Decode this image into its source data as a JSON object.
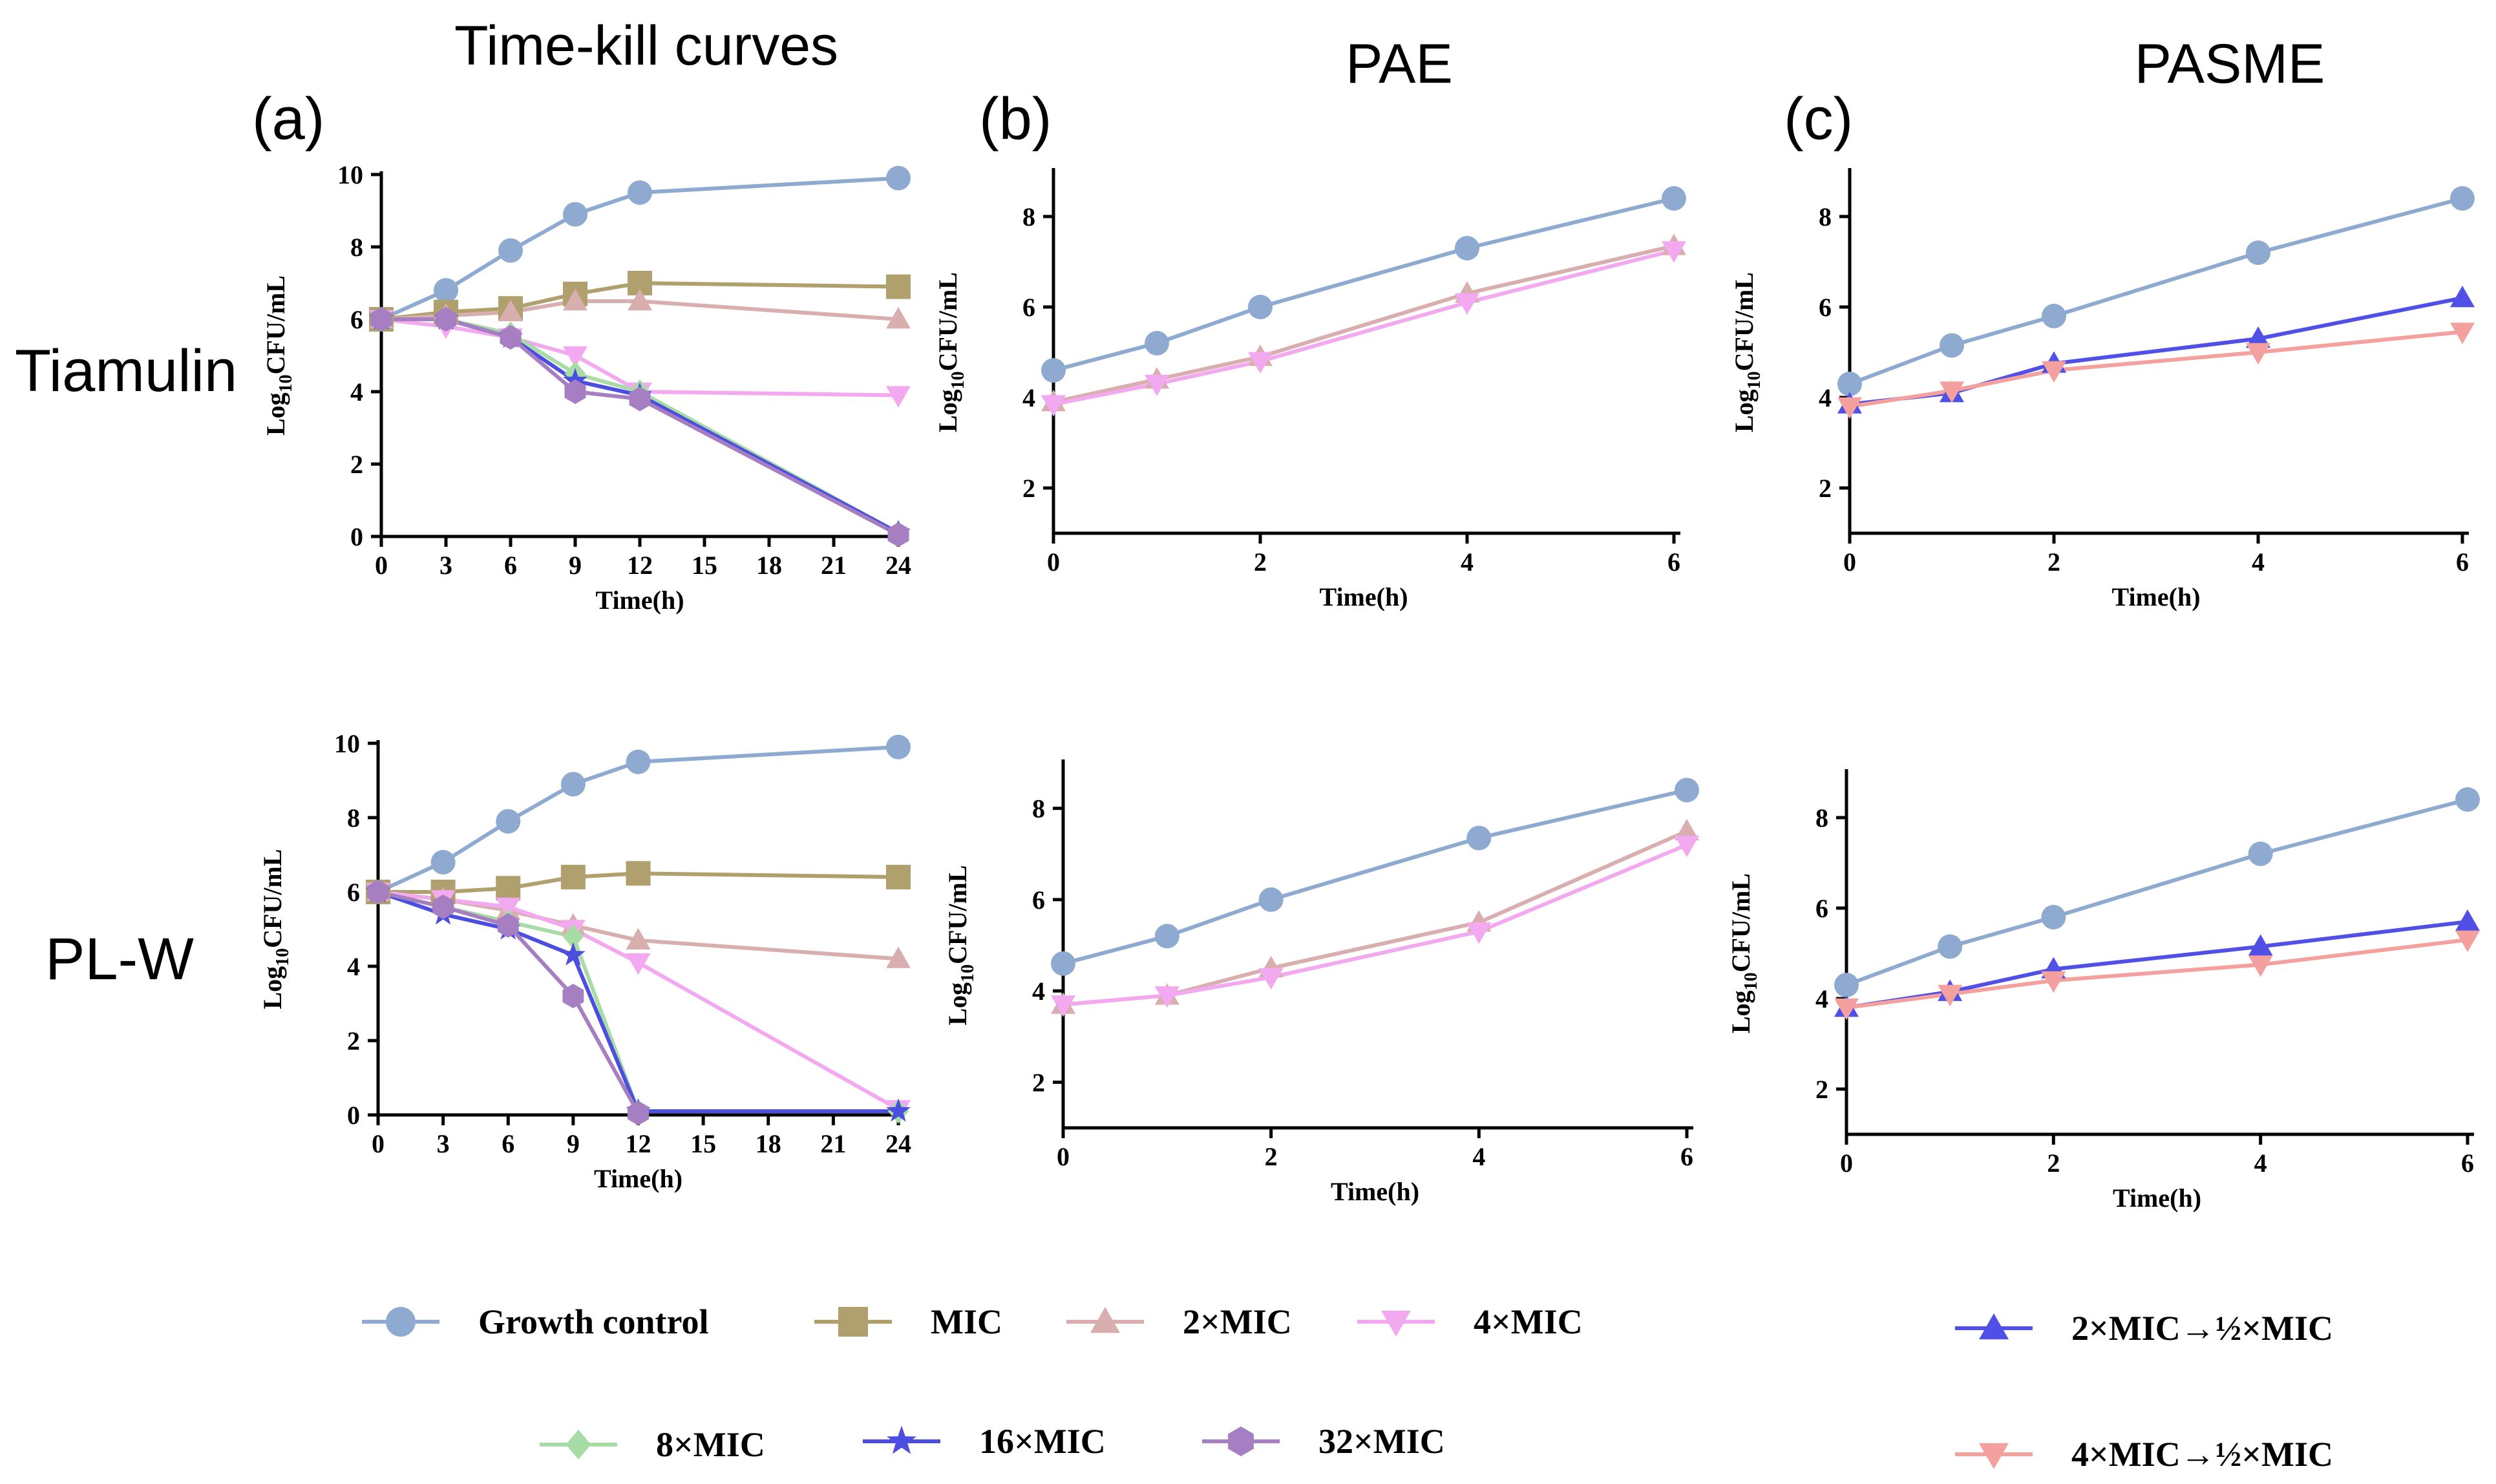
{
  "figure": {
    "col_titles": [
      "Time-kill curves",
      "PAE",
      "PASME"
    ],
    "panel_letters": [
      "(a)",
      "(b)",
      "(c)"
    ],
    "row_labels": [
      "Tiamulin",
      "PL-W"
    ]
  },
  "legend": {
    "items": [
      {
        "key": "growth",
        "label": "Growth control",
        "color": "#8eaad0",
        "marker": "circle"
      },
      {
        "key": "mic",
        "label": "MIC",
        "color": "#b0a06e",
        "marker": "square"
      },
      {
        "key": "mic2",
        "label": "2×MIC",
        "color": "#d8aeae",
        "marker": "triangle"
      },
      {
        "key": "mic4",
        "label": "4×MIC",
        "color": "#f3a9f0",
        "marker": "triangle-down"
      },
      {
        "key": "mic8",
        "label": "8×MIC",
        "color": "#a8dca6",
        "marker": "diamond"
      },
      {
        "key": "mic16",
        "label": "16×MIC",
        "color": "#4c4ee0",
        "marker": "star"
      },
      {
        "key": "mic32",
        "label": "32×MIC",
        "color": "#a67fc2",
        "marker": "hexagon"
      },
      {
        "key": "pasme2",
        "label": "2×MIC→½×MIC",
        "color": "#5150e6",
        "marker": "triangle"
      },
      {
        "key": "pasme4",
        "label": "4×MIC→½×MIC",
        "color": "#f4a09e",
        "marker": "triangle-down"
      }
    ]
  },
  "chart_data": [
    {
      "id": "timekill-tiamulin",
      "type": "line",
      "panel": "(a)",
      "row": "Tiamulin",
      "xlabel": "Time(h)",
      "ylabel": "Log10CFU/mL",
      "xlim": [
        0,
        24
      ],
      "ylim": [
        0,
        10
      ],
      "xticks": [
        0,
        3,
        6,
        9,
        12,
        15,
        18,
        21,
        24
      ],
      "yticks": [
        0,
        2,
        4,
        6,
        8,
        10
      ],
      "series": [
        {
          "key": "growth",
          "x": [
            0,
            3,
            6,
            9,
            12,
            24
          ],
          "y": [
            6.0,
            6.8,
            7.9,
            8.9,
            9.5,
            9.9
          ]
        },
        {
          "key": "mic",
          "x": [
            0,
            3,
            6,
            9,
            12,
            24
          ],
          "y": [
            6.0,
            6.2,
            6.3,
            6.7,
            7.0,
            6.9
          ]
        },
        {
          "key": "mic2",
          "x": [
            0,
            3,
            6,
            9,
            12,
            24
          ],
          "y": [
            6.0,
            6.1,
            6.2,
            6.5,
            6.5,
            6.0
          ]
        },
        {
          "key": "mic4",
          "x": [
            0,
            3,
            6,
            9,
            12,
            24
          ],
          "y": [
            6.0,
            5.8,
            5.5,
            5.0,
            4.0,
            3.9
          ]
        },
        {
          "key": "mic8",
          "x": [
            0,
            3,
            6,
            9,
            12,
            24
          ],
          "y": [
            6.0,
            6.0,
            5.6,
            4.5,
            4.0,
            0.1
          ]
        },
        {
          "key": "mic16",
          "x": [
            0,
            3,
            6,
            9,
            12,
            24
          ],
          "y": [
            6.0,
            6.0,
            5.5,
            4.3,
            3.9,
            0.1
          ]
        },
        {
          "key": "mic32",
          "x": [
            0,
            3,
            6,
            9,
            12,
            24
          ],
          "y": [
            6.0,
            6.0,
            5.5,
            4.0,
            3.8,
            0.05
          ]
        }
      ]
    },
    {
      "id": "pae-tiamulin",
      "type": "line",
      "panel": "(b)",
      "row": "Tiamulin",
      "xlabel": "Time(h)",
      "ylabel": "Log10CFU/mL",
      "xlim": [
        0,
        6
      ],
      "ylim": [
        1,
        9
      ],
      "xticks": [
        0,
        2,
        4,
        6
      ],
      "yticks": [
        2,
        4,
        6,
        8
      ],
      "series": [
        {
          "key": "growth",
          "x": [
            0,
            1,
            2,
            4,
            6
          ],
          "y": [
            4.6,
            5.2,
            6.0,
            7.3,
            8.4
          ]
        },
        {
          "key": "mic2",
          "x": [
            0,
            1,
            2,
            4,
            6
          ],
          "y": [
            3.9,
            4.4,
            4.9,
            6.3,
            7.35
          ]
        },
        {
          "key": "mic4",
          "x": [
            0,
            1,
            2,
            4,
            6
          ],
          "y": [
            3.85,
            4.3,
            4.8,
            6.1,
            7.25
          ]
        }
      ]
    },
    {
      "id": "pasme-tiamulin",
      "type": "line",
      "panel": "(c)",
      "row": "Tiamulin",
      "xlabel": "Time(h)",
      "ylabel": "Log10CFU/mL",
      "xlim": [
        0,
        6
      ],
      "ylim": [
        1,
        9
      ],
      "xticks": [
        0,
        2,
        4,
        6
      ],
      "yticks": [
        2,
        4,
        6,
        8
      ],
      "series": [
        {
          "key": "growth",
          "x": [
            0,
            1,
            2,
            4,
            6
          ],
          "y": [
            4.3,
            5.15,
            5.8,
            7.2,
            8.4
          ]
        },
        {
          "key": "pasme2",
          "x": [
            0,
            1,
            2,
            4,
            6
          ],
          "y": [
            3.85,
            4.1,
            4.75,
            5.3,
            6.2
          ]
        },
        {
          "key": "pasme4",
          "x": [
            0,
            1,
            2,
            4,
            6
          ],
          "y": [
            3.8,
            4.15,
            4.6,
            5.0,
            5.45
          ]
        }
      ]
    },
    {
      "id": "timekill-plw",
      "type": "line",
      "panel": "(a)",
      "row": "PL-W",
      "xlabel": "Time(h)",
      "ylabel": "Log10CFU/mL",
      "xlim": [
        0,
        24
      ],
      "ylim": [
        0,
        10
      ],
      "xticks": [
        0,
        3,
        6,
        9,
        12,
        15,
        18,
        21,
        24
      ],
      "yticks": [
        0,
        2,
        4,
        6,
        8,
        10
      ],
      "series": [
        {
          "key": "growth",
          "x": [
            0,
            3,
            6,
            9,
            12,
            24
          ],
          "y": [
            6.0,
            6.8,
            7.9,
            8.9,
            9.5,
            9.9
          ]
        },
        {
          "key": "mic",
          "x": [
            0,
            3,
            6,
            9,
            12,
            24
          ],
          "y": [
            6.0,
            6.0,
            6.1,
            6.4,
            6.5,
            6.4
          ]
        },
        {
          "key": "mic2",
          "x": [
            0,
            3,
            6,
            9,
            12,
            24
          ],
          "y": [
            6.0,
            5.8,
            5.5,
            5.1,
            4.7,
            4.2
          ]
        },
        {
          "key": "mic4",
          "x": [
            0,
            3,
            6,
            9,
            12,
            24
          ],
          "y": [
            6.0,
            5.8,
            5.6,
            5.0,
            4.1,
            0.15
          ]
        },
        {
          "key": "mic8",
          "x": [
            0,
            3,
            6,
            9,
            12,
            24
          ],
          "y": [
            6.0,
            5.6,
            5.2,
            4.8,
            0.1,
            0.1
          ]
        },
        {
          "key": "mic16",
          "x": [
            0,
            3,
            6,
            9,
            12,
            24
          ],
          "y": [
            6.0,
            5.4,
            5.0,
            4.3,
            0.1,
            0.1
          ]
        },
        {
          "key": "mic32",
          "x": [
            0,
            3,
            6,
            9,
            12
          ],
          "y": [
            6.0,
            5.6,
            5.1,
            3.2,
            0.05
          ]
        }
      ]
    },
    {
      "id": "pae-plw",
      "type": "line",
      "panel": "(b)",
      "row": "PL-W",
      "xlabel": "Time(h)",
      "ylabel": "Log10CFU/mL",
      "xlim": [
        0,
        6
      ],
      "ylim": [
        1,
        9
      ],
      "xticks": [
        0,
        2,
        4,
        6
      ],
      "yticks": [
        2,
        4,
        6,
        8
      ],
      "series": [
        {
          "key": "growth",
          "x": [
            0,
            1,
            2,
            4,
            6
          ],
          "y": [
            4.6,
            5.2,
            6.0,
            7.35,
            8.4
          ]
        },
        {
          "key": "mic2",
          "x": [
            0,
            1,
            2,
            4,
            6
          ],
          "y": [
            3.7,
            3.9,
            4.5,
            5.5,
            7.5
          ]
        },
        {
          "key": "mic4",
          "x": [
            0,
            1,
            2,
            4,
            6
          ],
          "y": [
            3.7,
            3.9,
            4.3,
            5.3,
            7.2
          ]
        }
      ]
    },
    {
      "id": "pasme-plw",
      "type": "line",
      "panel": "(c)",
      "row": "PL-W",
      "xlabel": "Time(h)",
      "ylabel": "Log10CFU/mL",
      "xlim": [
        0,
        6
      ],
      "ylim": [
        1,
        9
      ],
      "xticks": [
        0,
        2,
        4,
        6
      ],
      "yticks": [
        2,
        4,
        6,
        8
      ],
      "series": [
        {
          "key": "growth",
          "x": [
            0,
            1,
            2,
            4,
            6
          ],
          "y": [
            4.3,
            5.15,
            5.8,
            7.2,
            8.4
          ]
        },
        {
          "key": "pasme2",
          "x": [
            0,
            1,
            2,
            4,
            6
          ],
          "y": [
            3.8,
            4.15,
            4.65,
            5.15,
            5.7
          ]
        },
        {
          "key": "pasme4",
          "x": [
            0,
            1,
            2,
            4,
            6
          ],
          "y": [
            3.8,
            4.1,
            4.4,
            4.75,
            5.3
          ]
        }
      ]
    }
  ]
}
